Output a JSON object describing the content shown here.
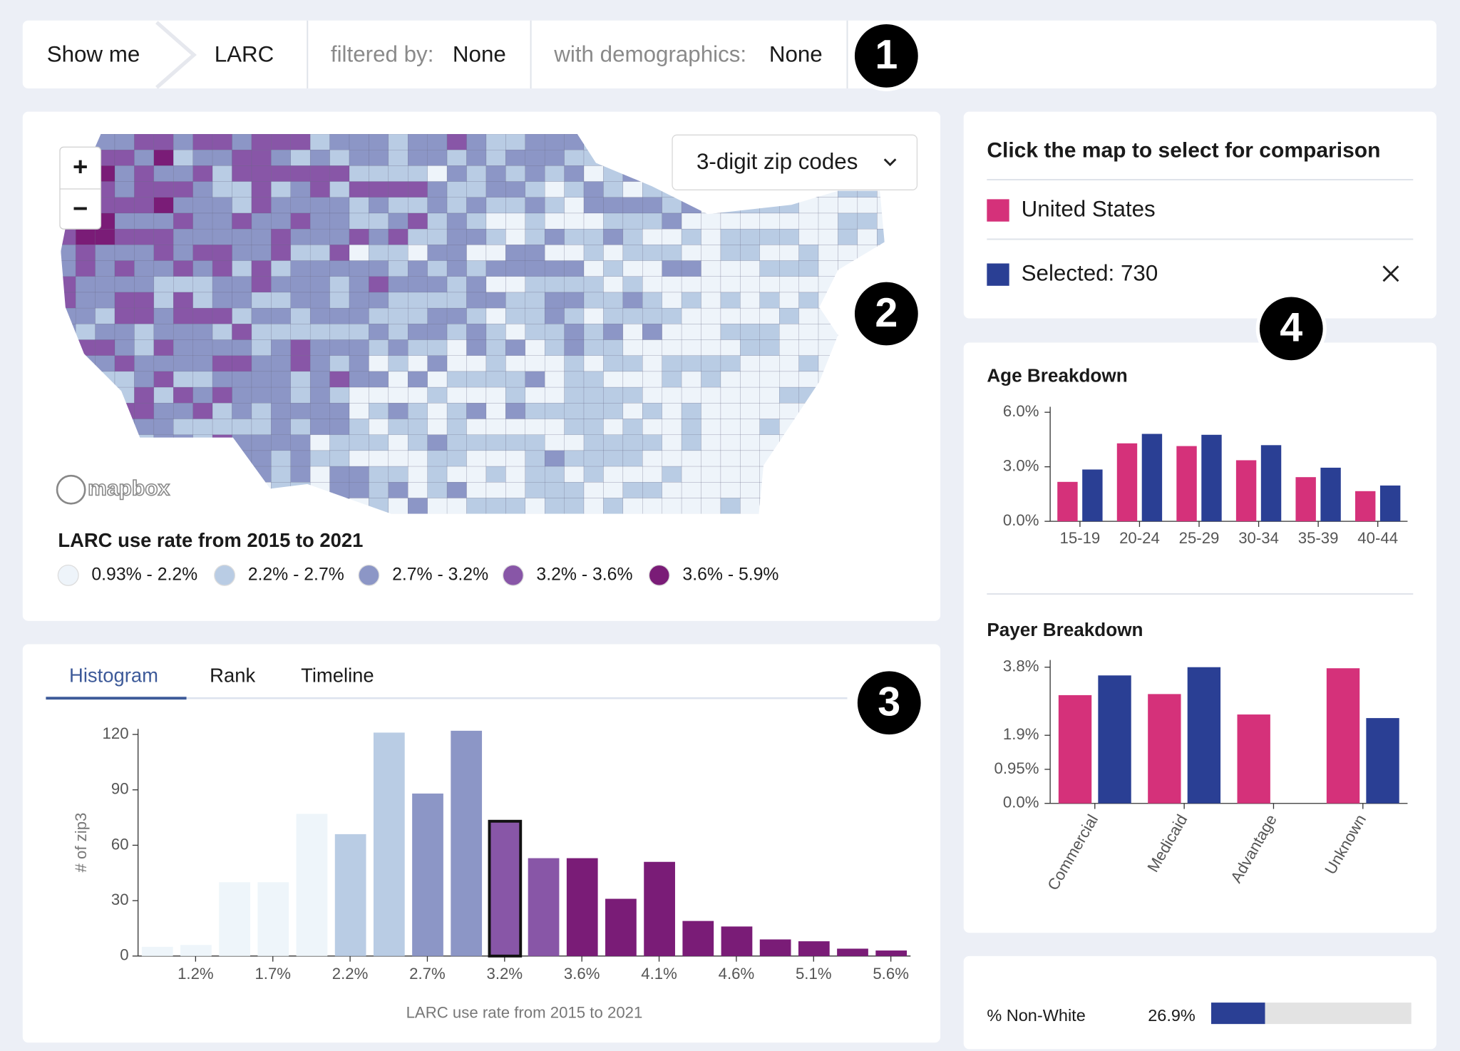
{
  "header": {
    "show_me": "Show me",
    "measure": "LARC",
    "filter_label": "filtered by:",
    "filter_value": "None",
    "demographics_label": "with demographics:",
    "demographics_value": "None"
  },
  "markers": [
    "1",
    "2",
    "3",
    "4"
  ],
  "map": {
    "zoom_in": "+",
    "zoom_out": "−",
    "geography": "3-digit zip codes",
    "attribution": "mapbox",
    "legend_title": "LARC use rate from 2015 to 2021",
    "legend": [
      {
        "label": "0.93% - 2.2%",
        "color": "#eef4fa"
      },
      {
        "label": "2.2% - 2.7%",
        "color": "#b9cce4"
      },
      {
        "label": "2.7% - 3.2%",
        "color": "#8c96c6"
      },
      {
        "label": "3.2% - 3.6%",
        "color": "#8856a7"
      },
      {
        "label": "3.6% - 5.9%",
        "color": "#7a1c77"
      }
    ]
  },
  "tabs": {
    "items": [
      "Histogram",
      "Rank",
      "Timeline"
    ],
    "active": 0
  },
  "comparison": {
    "title": "Click the map to select for comparison"
  },
  "demographics": {
    "label": "% Non-White",
    "value": 26.9,
    "value_label": "26.9%",
    "xlim": [
      0,
      100
    ],
    "color": "#2a3f94",
    "track_color": "#e3e3e3"
  },
  "chart_data": [
    {
      "type": "histogram",
      "xlabel": "LARC use rate from 2015 to 2021",
      "ylabel": "# of zip3",
      "bins": [
        0.825,
        1.07,
        1.315,
        1.56,
        1.805,
        2.05,
        2.295,
        2.54,
        2.785,
        3.03,
        3.275,
        3.52,
        3.765,
        4.01,
        4.255,
        4.5,
        4.745,
        4.99,
        5.235,
        5.48,
        5.725
      ],
      "values": [
        5,
        6,
        40,
        40,
        77,
        66,
        121,
        88,
        122,
        73,
        53,
        53,
        31,
        51,
        19,
        16,
        9,
        8,
        4,
        3
      ],
      "colors": [
        "#eef5fa",
        "#eef5fa",
        "#eef5fa",
        "#eef5fa",
        "#eef5fa",
        "#b9cce4",
        "#b9cce4",
        "#8c96c6",
        "#8c96c6",
        "#8856a7",
        "#8856a7",
        "#7a1c77",
        "#7a1c77",
        "#7a1c77",
        "#7a1c77",
        "#7a1c77",
        "#7a1c77",
        "#7a1c77",
        "#7a1c77",
        "#7a1c77"
      ],
      "highlight": 9,
      "xlim": [
        0.825,
        5.725
      ],
      "xticks": [
        {
          "value": 1.19,
          "label": "1.2%"
        },
        {
          "value": 1.68,
          "label": "1.7%"
        },
        {
          "value": 2.17,
          "label": "2.2%"
        },
        {
          "value": 2.66,
          "label": "2.7%"
        },
        {
          "value": 3.15,
          "label": "3.2%"
        },
        {
          "value": 3.64,
          "label": "3.6%"
        },
        {
          "value": 4.13,
          "label": "4.1%"
        },
        {
          "value": 4.62,
          "label": "4.6%"
        },
        {
          "value": 5.11,
          "label": "5.1%"
        },
        {
          "value": 5.6,
          "label": "5.6%"
        }
      ],
      "ylim": [
        0,
        123
      ],
      "yticks": [
        0,
        30,
        60,
        90,
        120
      ]
    },
    {
      "type": "bar",
      "title": "Age Breakdown",
      "categories": [
        "15-19",
        "20-24",
        "25-29",
        "30-34",
        "35-39",
        "40-44"
      ],
      "series": [
        {
          "name": "United States",
          "color": "#d5317a",
          "values": [
            2.17,
            4.29,
            4.14,
            3.36,
            2.43,
            1.66
          ]
        },
        {
          "name": "Selected: 730",
          "color": "#2a3f94",
          "values": [
            2.85,
            4.81,
            4.76,
            4.19,
            2.95,
            1.97
          ]
        }
      ],
      "ylim": [
        0,
        6.3
      ],
      "yticks": [
        {
          "value": 0,
          "label": "0.0%"
        },
        {
          "value": 3,
          "label": "3.0%"
        },
        {
          "value": 6,
          "label": "6.0%"
        }
      ]
    },
    {
      "type": "bar",
      "title": "Payer Breakdown",
      "categories": [
        "Commercial",
        "Medicaid",
        "Advantage",
        "Unknown"
      ],
      "series": [
        {
          "color": "#d5317a",
          "values": [
            3.02,
            3.05,
            2.48,
            3.77
          ]
        },
        {
          "color": "#2a3f94",
          "values": [
            3.57,
            3.8,
            null,
            2.38
          ]
        }
      ],
      "ylim": [
        0,
        4
      ],
      "yticks": [
        {
          "value": 0,
          "label": "0.0%"
        },
        {
          "value": 0.95,
          "label": "0.95%"
        },
        {
          "value": 1.9,
          "label": "1.9%"
        },
        {
          "value": 3.8,
          "label": "3.8%"
        }
      ]
    }
  ]
}
